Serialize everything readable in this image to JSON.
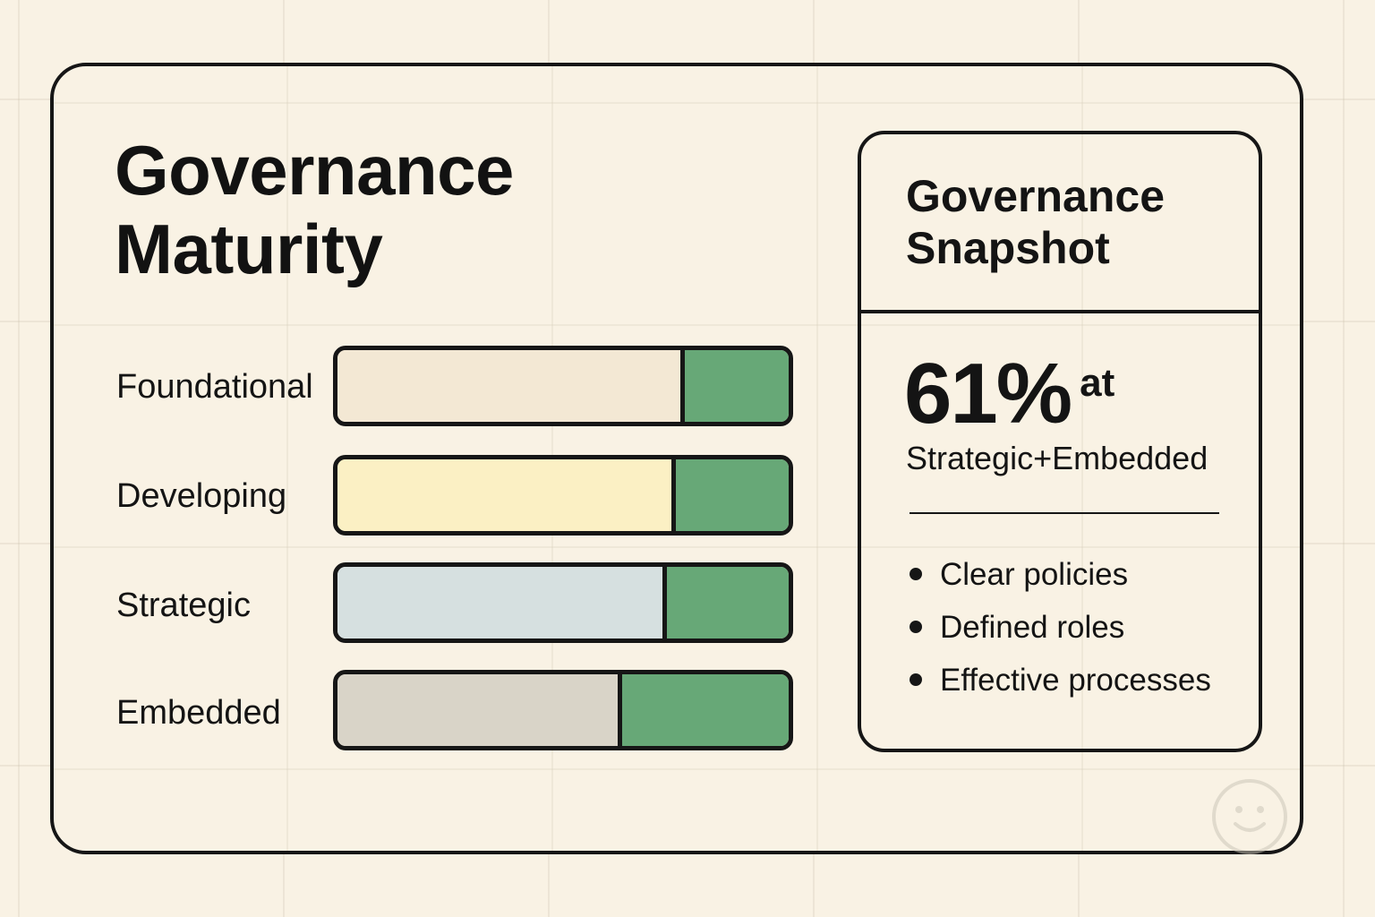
{
  "title_lines": [
    "Governance",
    "Maturity"
  ],
  "chart_data": {
    "type": "bar",
    "orientation": "horizontal",
    "stacked": true,
    "title": "Governance Maturity",
    "categories": [
      "Foundational",
      "Developing",
      "Strategic",
      "Embedded"
    ],
    "series": [
      {
        "values": [
          77,
          75,
          73,
          63
        ],
        "color": "#f3e8d4"
      },
      {
        "values": [
          23,
          25,
          27,
          37
        ],
        "color": "#67a877"
      }
    ],
    "category_colors": [
      "#f3e8d4",
      "#fbf0c4",
      "#d6e0e0",
      "#d9d4c8"
    ],
    "accent_color": "#67a877",
    "xlim": [
      0,
      100
    ],
    "grid": false,
    "legend": "none"
  },
  "snapshot": {
    "title_lines": [
      "Governance",
      "Snapshot"
    ],
    "stat_value": "61%",
    "stat_suffix": "at",
    "stat_caption": "Strategic+Embedded",
    "bullets": [
      "Clear policies",
      "Defined roles",
      "Effective processes"
    ]
  },
  "icons": {
    "corner": "smiley-face-icon"
  },
  "colors": {
    "background": "#f9f2e4",
    "outline": "#161616",
    "green": "#67a877"
  }
}
